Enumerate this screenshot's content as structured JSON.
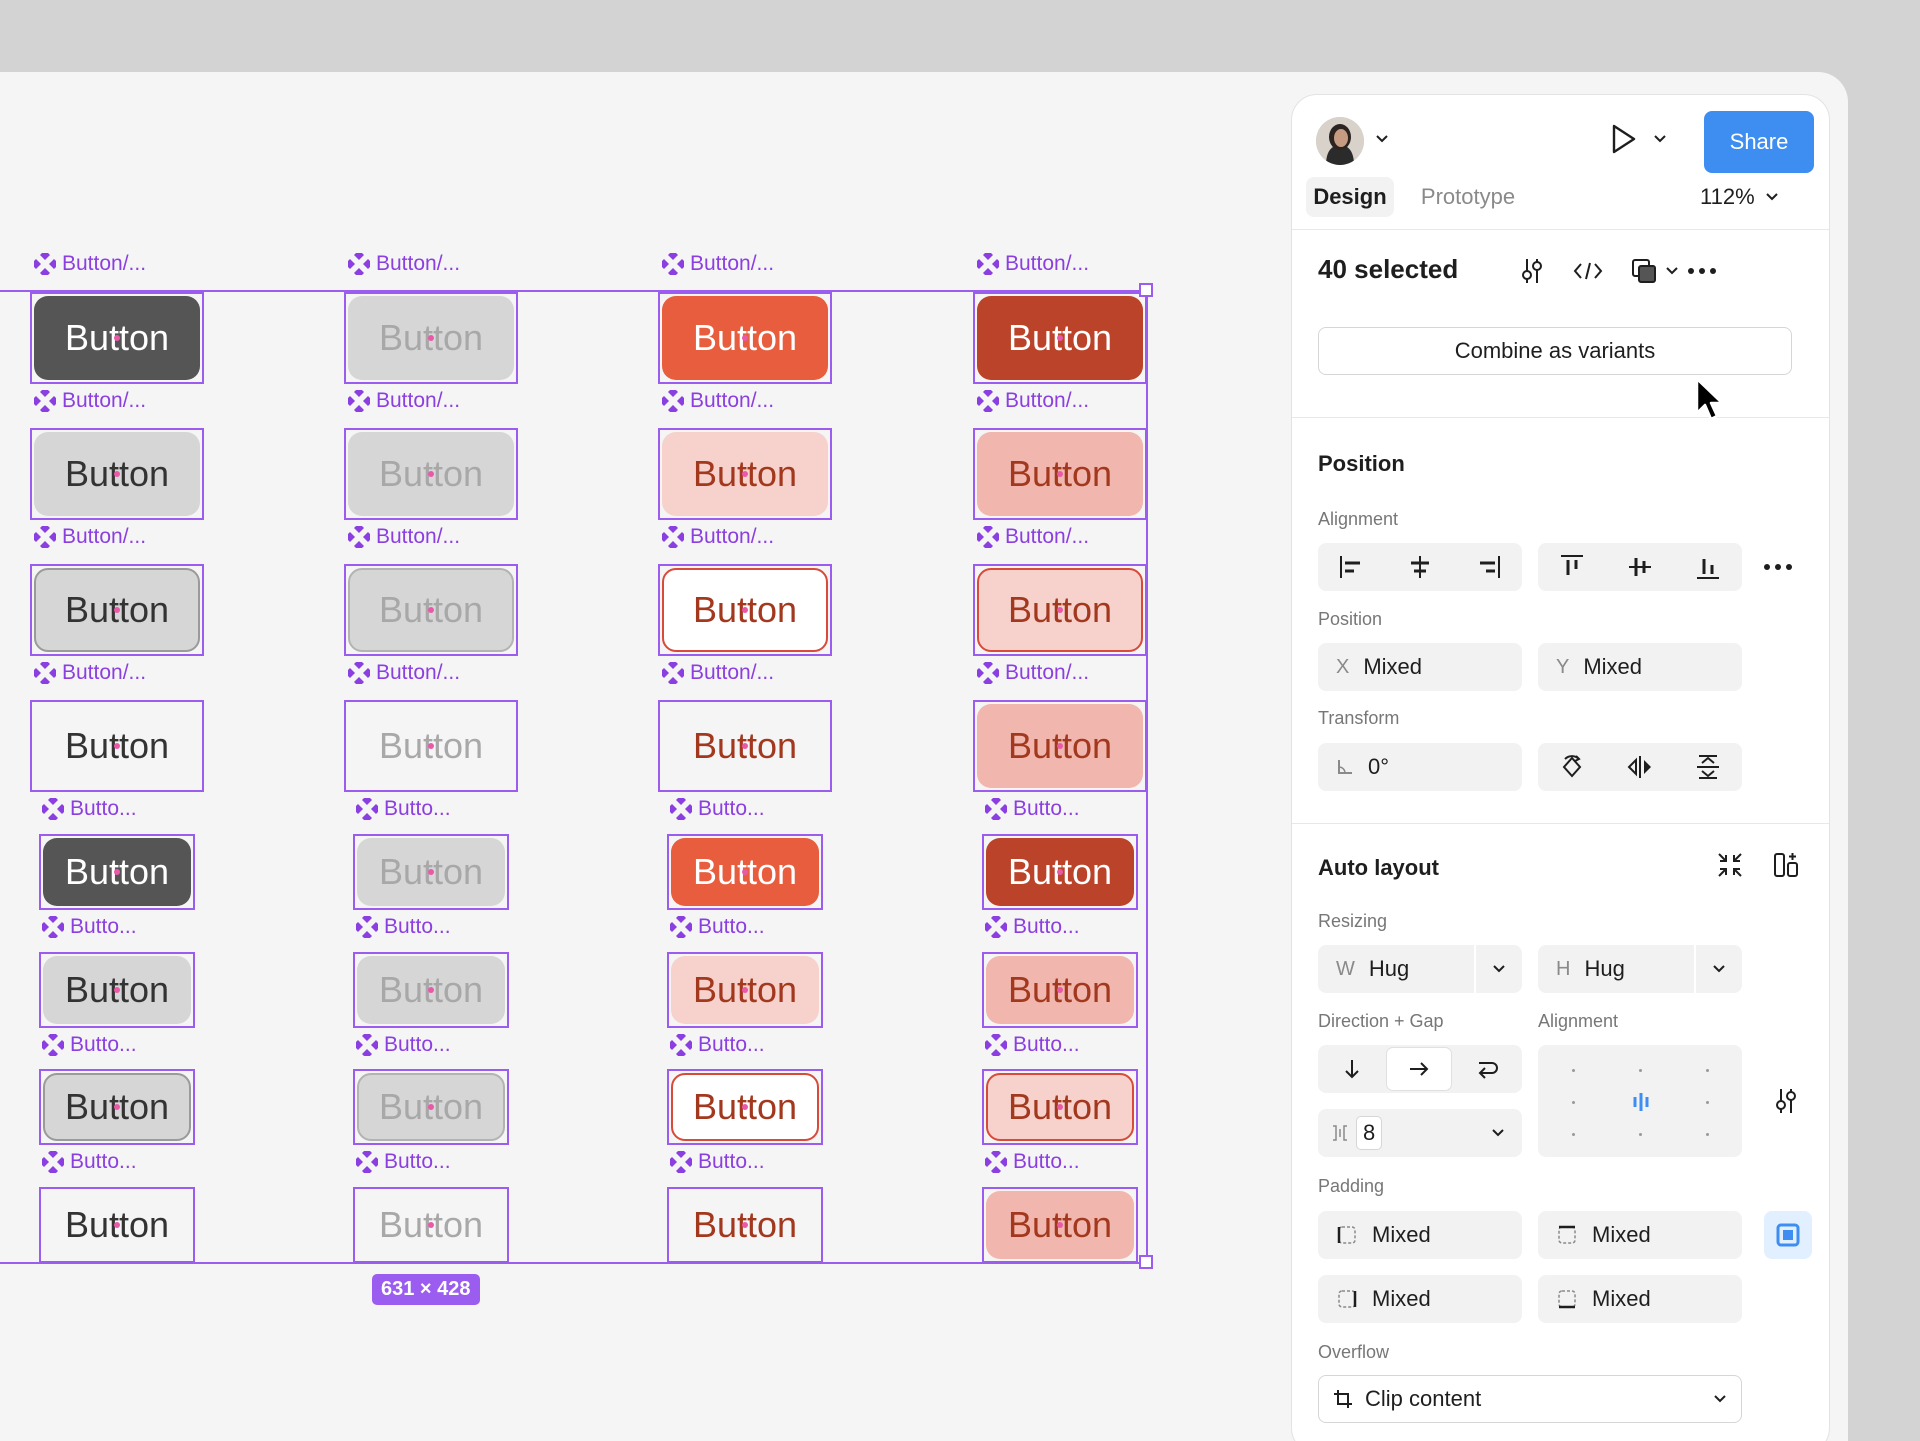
{
  "canvas": {
    "labels": {
      "full": "Button/...",
      "short": "Butto..."
    },
    "button_text": "Button",
    "dimension_badge": "631 × 428"
  },
  "panel": {
    "share_label": "Share",
    "tabs": {
      "design": "Design",
      "prototype": "Prototype"
    },
    "zoom": "112%",
    "selection": {
      "count_label": "40 selected",
      "combine_label": "Combine as variants"
    },
    "position": {
      "title": "Position",
      "alignment_label": "Alignment",
      "position_label": "Position",
      "x_prefix": "X",
      "x_value": "Mixed",
      "y_prefix": "Y",
      "y_value": "Mixed",
      "transform_label": "Transform",
      "rotation": "0°"
    },
    "auto_layout": {
      "title": "Auto layout",
      "resizing_label": "Resizing",
      "w_prefix": "W",
      "w_value": "Hug",
      "h_prefix": "H",
      "h_value": "Hug",
      "direction_gap_label": "Direction + Gap",
      "alignment_label": "Alignment",
      "gap_value": "8",
      "padding_label": "Padding",
      "padding": [
        "Mixed",
        "Mixed",
        "Mixed",
        "Mixed"
      ],
      "overflow_label": "Overflow",
      "overflow_value": "Clip content"
    }
  },
  "colors": {
    "accent_purple": "#9b5cf0",
    "share_blue": "#3d8ef0",
    "button_orange": "#e85d3d",
    "button_darkred": "#ba4329"
  }
}
